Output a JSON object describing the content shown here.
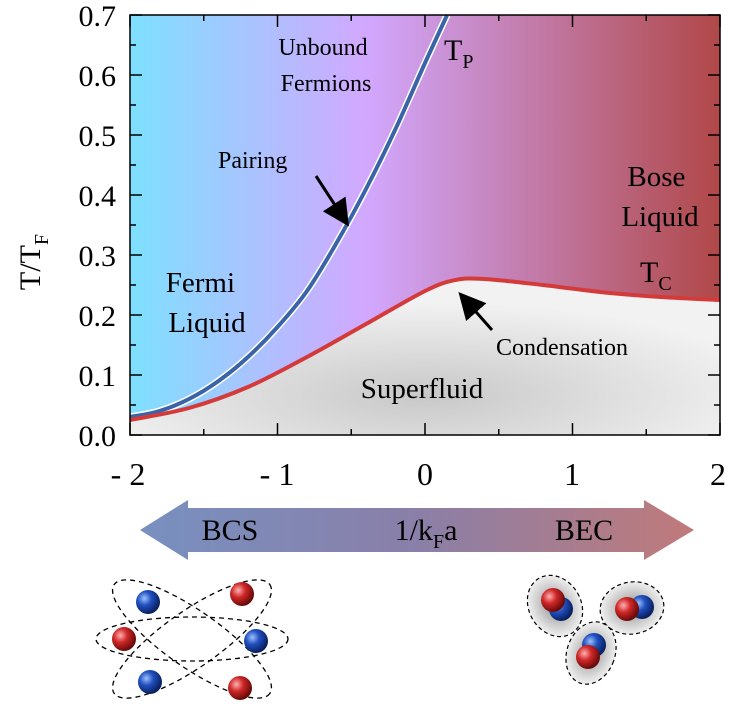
{
  "axis": {
    "y_label_base": "T/T",
    "y_label_sub": "F",
    "x_ticks": [
      "- 2",
      "- 1",
      "0",
      "1",
      "2"
    ],
    "y_ticks": [
      "0.0",
      "0.1",
      "0.2",
      "0.3",
      "0.4",
      "0.5",
      "0.6",
      "0.7"
    ]
  },
  "regions": {
    "unbound_line1": "Unbound",
    "unbound_line2": "Fermions",
    "fermi_line1": "Fermi",
    "fermi_line2": "Liquid",
    "bose_line1": "Bose",
    "bose_line2": "Liquid",
    "superfluid": "Superfluid"
  },
  "curves": {
    "tp_base": "T",
    "tp_sub": "P",
    "tc_base": "T",
    "tc_sub": "C",
    "pairing_label": "Pairing",
    "condensation_label": "Condensation"
  },
  "arrow_bar": {
    "left_label": "BCS",
    "center_base": "1/k",
    "center_sub": "F",
    "center_tail": "a",
    "right_label": "BEC"
  },
  "colors": {
    "tp_curve": "#3a64a8",
    "tc_curve": "#d43a3a",
    "bg_left": "#7ee0ff",
    "bg_mid": "#d2a8ff",
    "bg_right": "#b04848",
    "atom_blue": "#1a50c0",
    "atom_red": "#d02828"
  },
  "chart_data": {
    "type": "line",
    "x_range": [
      -2,
      2
    ],
    "y_range": [
      0,
      0.7
    ],
    "series": [
      {
        "name": "T",
        "x": [
          -2.0,
          -1.8,
          -1.6,
          -1.4,
          -1.2,
          -1.0,
          -0.8,
          -0.6,
          -0.4,
          -0.2,
          0.0,
          0.15
        ],
        "y": [
          0.03,
          0.04,
          0.06,
          0.09,
          0.13,
          0.18,
          0.24,
          0.32,
          0.41,
          0.51,
          0.62,
          0.7
        ]
      },
      {
        "name": "T",
        "x": [
          -2.0,
          -1.6,
          -1.2,
          -0.8,
          -0.4,
          0.0,
          0.2,
          0.4,
          0.8,
          1.2,
          1.6,
          2.0
        ],
        "y": [
          0.025,
          0.045,
          0.08,
          0.13,
          0.185,
          0.24,
          0.258,
          0.26,
          0.25,
          0.238,
          0.23,
          0.225
        ]
      }
    ]
  }
}
